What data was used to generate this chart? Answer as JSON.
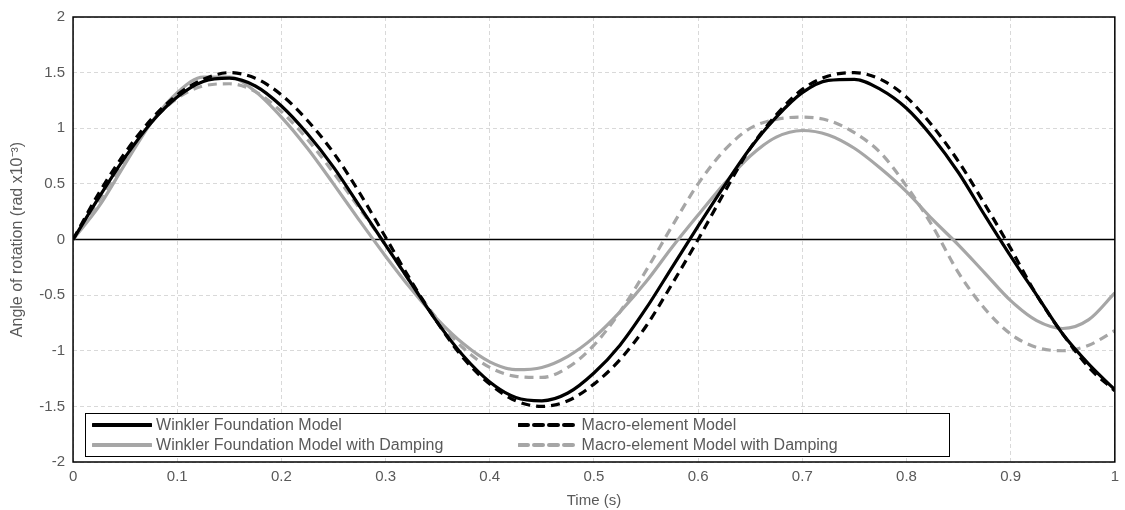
{
  "chart_data": {
    "type": "line",
    "xlabel": "Time (s)",
    "ylabel": "Angle of rotation (rad x10⁻³)",
    "x": [
      0,
      0.025,
      0.05,
      0.075,
      0.1,
      0.125,
      0.15,
      0.175,
      0.2,
      0.225,
      0.25,
      0.275,
      0.3,
      0.325,
      0.35,
      0.375,
      0.4,
      0.425,
      0.45,
      0.475,
      0.5,
      0.525,
      0.55,
      0.575,
      0.6,
      0.625,
      0.65,
      0.675,
      0.7,
      0.725,
      0.75,
      0.775,
      0.8,
      0.825,
      0.85,
      0.875,
      0.9,
      0.925,
      0.95,
      0.975,
      1
    ],
    "series": [
      {
        "name": "Winkler Foundation Model",
        "color": "#000000",
        "line_style": "solid",
        "values": [
          0,
          0.38,
          0.74,
          1.05,
          1.28,
          1.42,
          1.45,
          1.38,
          1.2,
          0.95,
          0.65,
          0.3,
          -0.05,
          -0.4,
          -0.75,
          -1.05,
          -1.28,
          -1.42,
          -1.45,
          -1.38,
          -1.2,
          -0.95,
          -0.62,
          -0.25,
          0.12,
          0.48,
          0.82,
          1.1,
          1.32,
          1.43,
          1.44,
          1.35,
          1.18,
          0.92,
          0.6,
          0.22,
          -0.15,
          -0.5,
          -0.85,
          -1.12,
          -1.35
        ]
      },
      {
        "name": "Macro-element Model",
        "color": "#000000",
        "line_style": "dashed",
        "values": [
          0,
          0.42,
          0.78,
          1.08,
          1.3,
          1.44,
          1.5,
          1.45,
          1.3,
          1.07,
          0.78,
          0.42,
          0.02,
          -0.38,
          -0.75,
          -1.07,
          -1.3,
          -1.45,
          -1.5,
          -1.45,
          -1.3,
          -1.08,
          -0.78,
          -0.4,
          0,
          0.42,
          0.82,
          1.12,
          1.35,
          1.47,
          1.5,
          1.44,
          1.28,
          1.02,
          0.7,
          0.32,
          -0.08,
          -0.5,
          -0.85,
          -1.15,
          -1.36
        ]
      },
      {
        "name": "Winkler Foundation Model with Damping",
        "color": "#a6a6a6",
        "line_style": "solid",
        "values": [
          0,
          0.3,
          0.68,
          1.05,
          1.32,
          1.46,
          1.46,
          1.33,
          1.1,
          0.82,
          0.5,
          0.17,
          -0.15,
          -0.45,
          -0.72,
          -0.94,
          -1.1,
          -1.17,
          -1.15,
          -1.05,
          -0.88,
          -0.65,
          -0.38,
          -0.07,
          0.22,
          0.5,
          0.75,
          0.92,
          0.98,
          0.94,
          0.82,
          0.64,
          0.43,
          0.18,
          -0.05,
          -0.3,
          -0.55,
          -0.73,
          -0.8,
          -0.72,
          -0.48
        ]
      },
      {
        "name": "Macro-element Model with Damping",
        "color": "#a6a6a6",
        "line_style": "dashed",
        "values": [
          0,
          0.35,
          0.72,
          1.05,
          1.27,
          1.38,
          1.4,
          1.33,
          1.15,
          0.9,
          0.6,
          0.28,
          -0.05,
          -0.4,
          -0.72,
          -0.98,
          -1.15,
          -1.23,
          -1.24,
          -1.15,
          -0.95,
          -0.65,
          -0.28,
          0.12,
          0.5,
          0.8,
          1.0,
          1.08,
          1.1,
          1.07,
          0.96,
          0.78,
          0.48,
          0.12,
          -0.3,
          -0.62,
          -0.85,
          -0.97,
          -1.0,
          -0.95,
          -0.82
        ]
      }
    ],
    "xlim": [
      0,
      1
    ],
    "xticks": [
      0,
      0.1,
      0.2,
      0.3,
      0.4,
      0.5,
      0.6,
      0.7,
      0.8,
      0.9,
      1
    ],
    "ylim": [
      -2,
      2
    ],
    "yticks": [
      -2,
      -1.5,
      -1,
      -0.5,
      0,
      0.5,
      1,
      1.5,
      2
    ],
    "grid": true,
    "legend": "bottom",
    "marker": "none",
    "ref_lines": [
      {
        "axis": "y",
        "value": 0,
        "color": "#000000"
      }
    ]
  }
}
